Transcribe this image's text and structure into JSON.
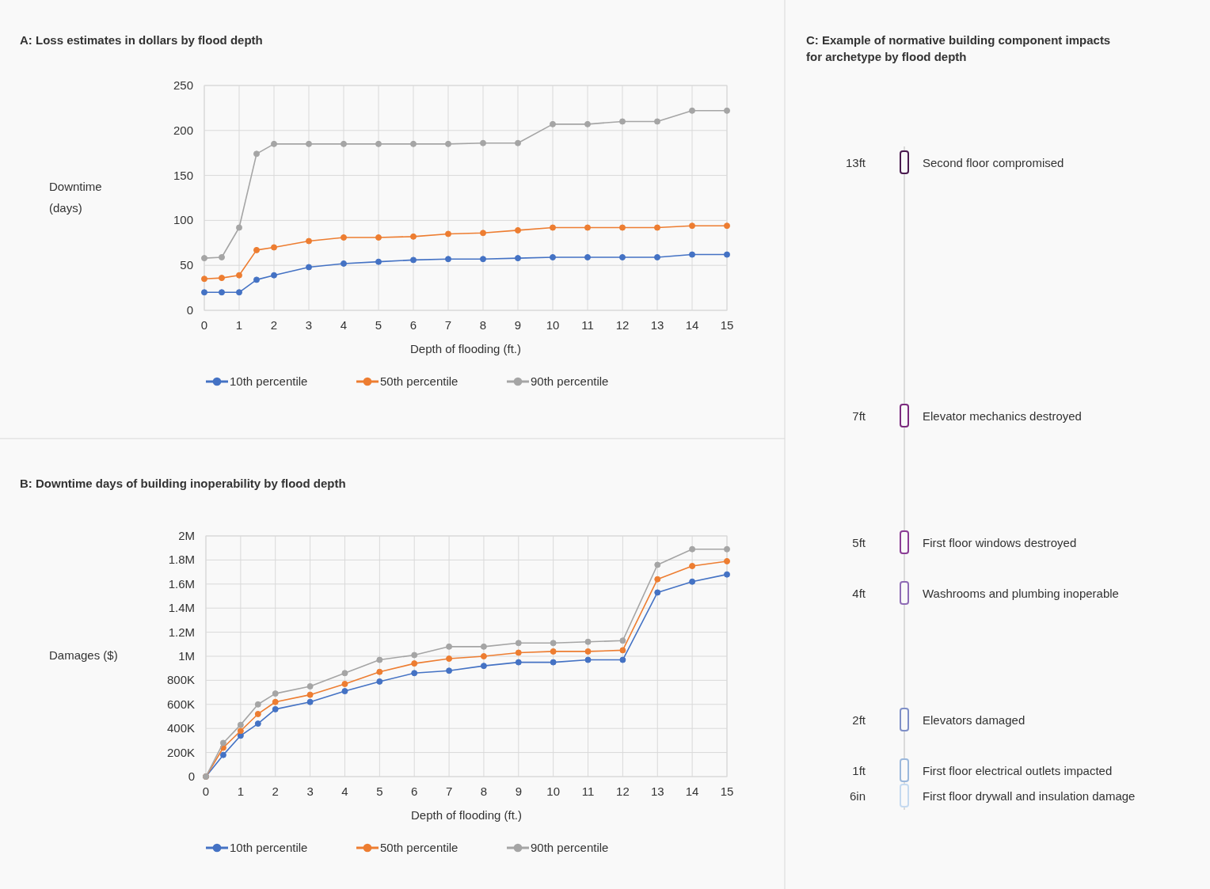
{
  "chart_data": [
    {
      "type": "line",
      "title": "A: Loss estimates in dollars by flood depth",
      "xlabel": "Depth of flooding (ft.)",
      "ylabel": "Downtime (days)",
      "x": [
        0,
        0.5,
        1,
        1.5,
        2,
        3,
        4,
        5,
        6,
        7,
        8,
        9,
        10,
        11,
        12,
        13,
        14,
        15
      ],
      "xlim": [
        0,
        15
      ],
      "xticks": [
        0,
        1,
        2,
        3,
        4,
        5,
        6,
        7,
        8,
        9,
        10,
        11,
        12,
        13,
        14,
        15
      ],
      "ylim": [
        0,
        250
      ],
      "yticks": [
        0,
        50,
        100,
        150,
        200,
        250
      ],
      "grid": true,
      "legend": "bottom",
      "marker": "circle",
      "line_style": "solid",
      "series": [
        {
          "name": "10th percentile",
          "color": "#4472c4",
          "values": [
            20,
            20,
            20,
            34,
            39,
            48,
            52,
            54,
            56,
            57,
            57,
            58,
            59,
            59,
            59,
            59,
            62,
            62
          ]
        },
        {
          "name": "50th percentile",
          "color": "#ed7d31",
          "values": [
            35,
            36,
            39,
            67,
            70,
            77,
            81,
            81,
            82,
            85,
            86,
            89,
            92,
            92,
            92,
            92,
            94,
            94
          ]
        },
        {
          "name": "90th percentile",
          "color": "#a5a5a5",
          "values": [
            58,
            59,
            92,
            174,
            185,
            185,
            185,
            185,
            185,
            185,
            186,
            186,
            207,
            207,
            210,
            210,
            222,
            222
          ]
        }
      ]
    },
    {
      "type": "line",
      "title": "B: Downtime days of building inoperability by flood depth",
      "xlabel": "Depth of flooding (ft.)",
      "ylabel": "Damages ($)",
      "x": [
        0,
        0.5,
        1,
        1.5,
        2,
        3,
        4,
        5,
        6,
        7,
        8,
        9,
        10,
        11,
        12,
        13,
        14,
        15
      ],
      "xlim": [
        0,
        15
      ],
      "xticks": [
        0,
        1,
        2,
        3,
        4,
        5,
        6,
        7,
        8,
        9,
        10,
        11,
        12,
        13,
        14,
        15
      ],
      "ylim": [
        0,
        2000000
      ],
      "yticks": [
        0,
        {
          "value": 200000,
          "label": "200K"
        },
        {
          "value": 400000,
          "label": "400K"
        },
        {
          "value": 600000,
          "label": "600K"
        },
        {
          "value": 800000,
          "label": "800K"
        },
        {
          "value": 1000000,
          "label": "1M"
        },
        {
          "value": 1200000,
          "label": "1.2M"
        },
        {
          "value": 1400000,
          "label": "1.4M"
        },
        {
          "value": 1600000,
          "label": "1.6M"
        },
        {
          "value": 1800000,
          "label": "1.8M"
        },
        {
          "value": 2000000,
          "label": "2M"
        }
      ],
      "grid": true,
      "legend": "bottom",
      "marker": "circle",
      "line_style": "solid",
      "series": [
        {
          "name": "10th percentile",
          "color": "#4472c4",
          "values": [
            0,
            180000,
            340000,
            440000,
            560000,
            620000,
            710000,
            790000,
            860000,
            880000,
            920000,
            950000,
            950000,
            970000,
            970000,
            1530000,
            1620000,
            1680000
          ]
        },
        {
          "name": "50th percentile",
          "color": "#ed7d31",
          "values": [
            0,
            240000,
            380000,
            520000,
            620000,
            680000,
            770000,
            870000,
            940000,
            980000,
            1000000,
            1030000,
            1040000,
            1040000,
            1050000,
            1640000,
            1750000,
            1790000
          ]
        },
        {
          "name": "90th percentile",
          "color": "#a5a5a5",
          "values": [
            0,
            280000,
            430000,
            600000,
            690000,
            750000,
            860000,
            970000,
            1010000,
            1080000,
            1080000,
            1110000,
            1110000,
            1120000,
            1130000,
            1760000,
            1890000,
            1890000
          ]
        }
      ]
    },
    {
      "type": "other",
      "title": "C: Example of normative building component impacts for archetype by flood depth",
      "categories": [
        "13ft",
        "7ft",
        "5ft",
        "4ft",
        "2ft",
        "1ft",
        "6in"
      ],
      "annotations": [
        "Second floor compromised",
        "Elevator mechanics destroyed",
        "First floor windows destroyed",
        "Washrooms and plumbing inoperable",
        "Elevators damaged",
        "First floor electrical outlets impacted",
        "First floor drywall and insulation damage"
      ],
      "colors": [
        "#4a1a4f",
        "#7b2a7e",
        "#8a3c95",
        "#8e6bb5",
        "#7f8fc7",
        "#9bb8dc",
        "#c5daf0"
      ]
    }
  ]
}
